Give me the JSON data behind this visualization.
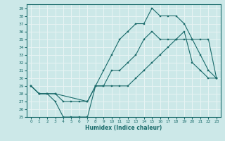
{
  "xlabel": "Humidex (Indice chaleur)",
  "background_color": "#cce8e8",
  "grid_color": "#e8f4f4",
  "line_color": "#1a6b6b",
  "xlim": [
    -0.5,
    23.5
  ],
  "ylim": [
    25,
    39.5
  ],
  "yticks": [
    25,
    26,
    27,
    28,
    29,
    30,
    31,
    32,
    33,
    34,
    35,
    36,
    37,
    38,
    39
  ],
  "xticks": [
    0,
    1,
    2,
    3,
    4,
    5,
    6,
    7,
    8,
    9,
    10,
    11,
    12,
    13,
    14,
    15,
    16,
    17,
    18,
    19,
    20,
    21,
    22,
    23
  ],
  "line1_x": [
    0,
    1,
    2,
    3,
    4,
    5,
    6,
    7,
    8,
    9,
    10,
    11,
    12,
    13,
    14,
    15,
    16,
    17,
    18,
    19,
    20,
    21,
    22,
    23
  ],
  "line1_y": [
    29,
    28,
    28,
    27,
    25,
    25,
    25,
    25,
    29,
    29,
    31,
    31,
    32,
    33,
    35,
    36,
    35,
    35,
    35,
    36,
    32,
    31,
    30,
    30
  ],
  "line2_x": [
    0,
    1,
    2,
    3,
    4,
    5,
    6,
    7,
    8,
    9,
    10,
    11,
    12,
    13,
    14,
    15,
    16,
    17,
    18,
    19,
    20,
    21,
    22,
    23
  ],
  "line2_y": [
    29,
    28,
    28,
    28,
    27,
    27,
    27,
    27,
    29,
    31,
    33,
    35,
    36,
    37,
    37,
    39,
    38,
    38,
    38,
    37,
    35,
    33,
    31,
    30
  ],
  "line3_x": [
    0,
    1,
    3,
    7,
    8,
    9,
    10,
    11,
    12,
    13,
    14,
    15,
    16,
    17,
    18,
    19,
    20,
    21,
    22,
    23
  ],
  "line3_y": [
    29,
    28,
    28,
    27,
    29,
    29,
    29,
    29,
    29,
    30,
    31,
    32,
    33,
    34,
    35,
    35,
    35,
    35,
    35,
    30
  ]
}
